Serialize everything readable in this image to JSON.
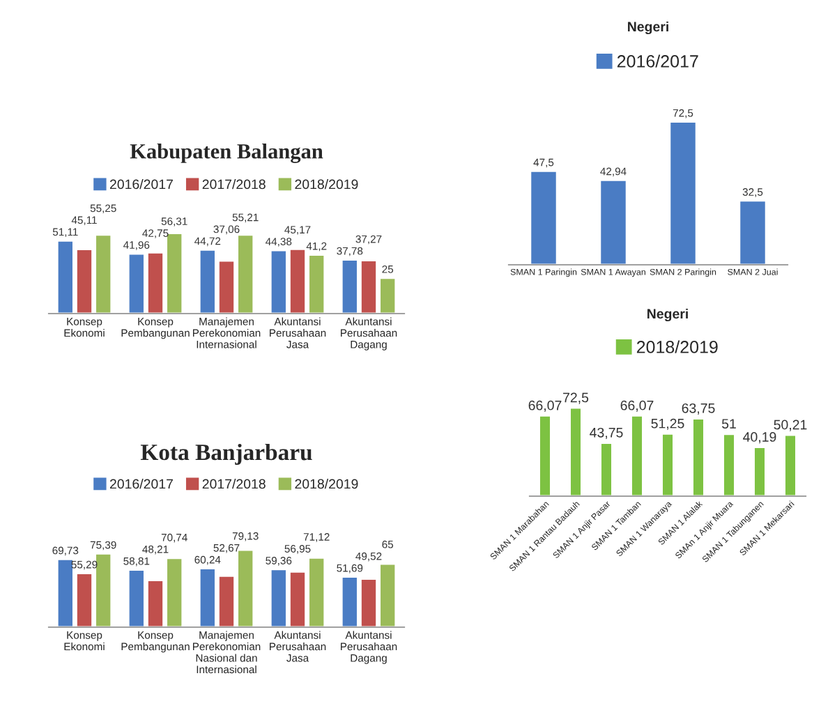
{
  "chart_data": [
    {
      "type": "bar",
      "title": "Kabupaten Balangan",
      "categories": [
        "Konsep\nEkonomi",
        "Konsep\nPembangunan",
        "Manajemen\nPerekonomian\nInternasional",
        "Akuntansi\nPerusahaan\nJasa",
        "Akuntansi\nPerusahaan\nDagang"
      ],
      "legend": "top",
      "tick_labels": "x",
      "series": [
        {
          "name": "2016/2017",
          "color": "#4a7cc4",
          "values": [
            51.11,
            41.96,
            44.72,
            44.38,
            37.78
          ],
          "value_labels": [
            "51,11",
            "41,96",
            "44,72",
            "44,38",
            "37,78"
          ]
        },
        {
          "name": "2017/2018",
          "color": "#c0504d",
          "values": [
            45.11,
            42.75,
            37.06,
            45.17,
            37.27
          ],
          "value_labels": [
            "45,11",
            "42,75",
            "37,06",
            "45,17",
            "37,27"
          ]
        },
        {
          "name": "2018/2019",
          "color": "#9bbb59",
          "values": [
            55.25,
            56.31,
            55.21,
            41.2,
            25
          ],
          "value_labels": [
            "55,25",
            "56,31",
            "55,21",
            "41,2",
            "25"
          ]
        }
      ]
    },
    {
      "type": "bar",
      "title": "Negeri",
      "categories": [
        "SMAN 1 Paringin",
        "SMAN 1 Awayan",
        "SMAN 2 Paringin",
        "SMAN 2 Juai"
      ],
      "legend": "top",
      "tick_labels": "x",
      "series": [
        {
          "name": "2016/2017",
          "color": "#4a7cc4",
          "values": [
            47.5,
            42.94,
            72.5,
            32.5
          ],
          "value_labels": [
            "47,5",
            "42,94",
            "72,5",
            "32,5"
          ]
        }
      ]
    },
    {
      "type": "bar",
      "title": "Kota Banjarbaru",
      "categories": [
        "Konsep\nEkonomi",
        "Konsep\nPembangunan",
        "Manajemen\nPerekonomian\nNasional dan\nInternasional",
        "Akuntansi\nPerusahaan\nJasa",
        "Akuntansi\nPerusahaan\nDagang"
      ],
      "legend": "top",
      "tick_labels": "x",
      "series": [
        {
          "name": "2016/2017",
          "color": "#4a7cc4",
          "values": [
            69.73,
            58.81,
            60.24,
            59.36,
            51.69
          ],
          "value_labels": [
            "69,73",
            "58,81",
            "60,24",
            "59,36",
            "51,69"
          ]
        },
        {
          "name": "2017/2018",
          "color": "#c0504d",
          "values": [
            55.29,
            48.21,
            52.67,
            56.95,
            49.52
          ],
          "value_labels": [
            "55,29",
            "48,21",
            "52,67",
            "56,95",
            "49,52"
          ]
        },
        {
          "name": "2018/2019",
          "color": "#9bbb59",
          "values": [
            75.39,
            70.74,
            79.13,
            71.12,
            65
          ],
          "value_labels": [
            "75,39",
            "70,74",
            "79,13",
            "71,12",
            "65"
          ]
        }
      ]
    },
    {
      "type": "bar",
      "title": "Negeri",
      "categories": [
        "SMAN 1 Marabahan",
        "SMAN 1 Rantau Badauh",
        "SMAN 1 Anjir Pasar",
        "SMAN 1 Tamban",
        "SMAN 1 Wanaraya",
        "SMAN 1 Alalak",
        "SMAn 1 Anjir Muara",
        "SMAN 1 Tabunganen",
        "SMAN 1 Mekarsari"
      ],
      "legend": "top",
      "tick_labels": "x",
      "series": [
        {
          "name": "2018/2019",
          "color": "#7dc242",
          "values": [
            66.07,
            72.5,
            43.75,
            66.07,
            51.25,
            63.75,
            51,
            40.19,
            50.21
          ],
          "value_labels": [
            "66,07",
            "72,5",
            "43,75",
            "66,07",
            "51,25",
            "63,75",
            "51",
            "40,19",
            "50,21"
          ]
        }
      ]
    }
  ]
}
